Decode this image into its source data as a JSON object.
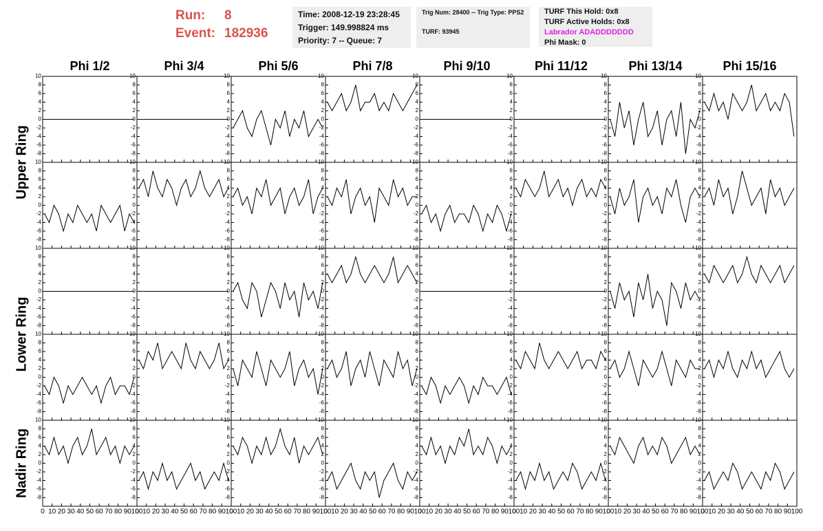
{
  "header": {
    "run_label": "Run:",
    "run": "8",
    "event_label": "Event:",
    "event": "182936",
    "time": "Time: 2008-12-19 23:28:45",
    "trigger": "Trigger: 149.998824 ms",
    "priority": "Priority: 7 -- Queue: 7",
    "trig_num": "Trig Num: 28400 -- Trig Type: PPS2",
    "turf": "TURF: 93945",
    "turf_hold": "TURF This Hold: 0x8",
    "turf_active": "TURF Active Holds: 0x8",
    "labrador": "Labrador ADADDDDDDD",
    "phi_mask": "Phi Mask: 0"
  },
  "chart_data": {
    "type": "line",
    "color": "#000000",
    "columns": [
      "Phi 1/2",
      "Phi 3/4",
      "Phi 5/6",
      "Phi 7/8",
      "Phi 9/10",
      "Phi 11/12",
      "Phi 13/14",
      "Phi 15/16"
    ],
    "rings": [
      "Upper Ring",
      "Lower Ring",
      "Nadir Ring"
    ],
    "xlim": [
      0,
      100
    ],
    "xticks": [
      0,
      10,
      20,
      30,
      40,
      50,
      60,
      70,
      80,
      90,
      100
    ],
    "ylim": [
      -10,
      10
    ],
    "yticks": [
      -8,
      -6,
      -4,
      -2,
      0,
      2,
      4,
      6,
      8,
      10
    ],
    "x": [
      2,
      7,
      12,
      17,
      22,
      27,
      32,
      37,
      42,
      47,
      52,
      57,
      62,
      67,
      72,
      77,
      82,
      87,
      92,
      97
    ],
    "panels": [
      {
        "values": [
          0,
          0,
          0,
          0,
          0,
          0,
          0,
          0,
          0,
          0,
          0,
          0,
          0,
          0,
          0,
          0,
          0,
          0,
          0,
          0
        ]
      },
      {
        "values": [
          0,
          0,
          0,
          0,
          0,
          0,
          0,
          0,
          0,
          0,
          0,
          0,
          0,
          0,
          0,
          0,
          0,
          0,
          0,
          0
        ]
      },
      {
        "values": [
          -2,
          0,
          2,
          -2,
          -4,
          0,
          2,
          -2,
          -6,
          0,
          -2,
          2,
          -4,
          0,
          -2,
          2,
          -4,
          -2,
          0,
          -2
        ]
      },
      {
        "values": [
          4,
          2,
          4,
          6,
          2,
          4,
          8,
          2,
          4,
          4,
          6,
          2,
          4,
          2,
          6,
          4,
          2,
          4,
          6,
          8
        ]
      },
      {
        "values": [
          0,
          0,
          0,
          0,
          0,
          0,
          0,
          0,
          0,
          0,
          0,
          0,
          0,
          0,
          0,
          0,
          0,
          0,
          0,
          0
        ]
      },
      {
        "values": [
          0,
          0,
          0,
          0,
          0,
          0,
          0,
          0,
          0,
          0,
          0,
          0,
          0,
          0,
          0,
          0,
          0,
          0,
          0,
          0
        ]
      },
      {
        "values": [
          0,
          -4,
          4,
          -2,
          2,
          -6,
          0,
          4,
          -4,
          -2,
          2,
          -6,
          0,
          2,
          -4,
          4,
          -8,
          0,
          -2,
          2
        ]
      },
      {
        "values": [
          4,
          2,
          6,
          2,
          4,
          0,
          6,
          4,
          2,
          4,
          8,
          2,
          4,
          6,
          2,
          4,
          2,
          6,
          4,
          -4
        ]
      },
      {
        "values": [
          -2,
          -4,
          0,
          -2,
          -6,
          -2,
          -4,
          0,
          -2,
          -4,
          -2,
          -6,
          0,
          -2,
          -4,
          -2,
          0,
          -6,
          -2,
          -4
        ]
      },
      {
        "values": [
          4,
          6,
          2,
          8,
          4,
          2,
          6,
          4,
          0,
          4,
          6,
          2,
          4,
          8,
          4,
          2,
          4,
          6,
          2,
          4
        ]
      },
      {
        "values": [
          2,
          4,
          0,
          2,
          -2,
          4,
          2,
          6,
          0,
          2,
          4,
          -2,
          2,
          4,
          0,
          2,
          6,
          -2,
          2,
          4
        ]
      },
      {
        "values": [
          2,
          0,
          4,
          2,
          6,
          -2,
          2,
          4,
          0,
          2,
          -4,
          4,
          2,
          0,
          6,
          2,
          4,
          0,
          2,
          2
        ]
      },
      {
        "values": [
          -2,
          0,
          -4,
          -2,
          -6,
          -2,
          0,
          -4,
          -2,
          -2,
          -4,
          0,
          -2,
          -6,
          -2,
          -4,
          0,
          -2,
          -6,
          -2
        ]
      },
      {
        "values": [
          4,
          2,
          6,
          4,
          2,
          4,
          8,
          2,
          4,
          6,
          2,
          4,
          0,
          4,
          6,
          2,
          4,
          2,
          6,
          4
        ]
      },
      {
        "values": [
          2,
          -2,
          4,
          0,
          2,
          6,
          -4,
          2,
          4,
          0,
          2,
          -2,
          4,
          2,
          6,
          0,
          -4,
          2,
          4,
          2
        ]
      },
      {
        "values": [
          2,
          4,
          0,
          6,
          2,
          4,
          -2,
          2,
          8,
          4,
          0,
          2,
          4,
          -2,
          6,
          2,
          4,
          0,
          2,
          4
        ]
      },
      {
        "values": [
          0,
          0,
          0,
          0,
          0,
          0,
          0,
          0,
          0,
          0,
          0,
          0,
          0,
          0,
          0,
          0,
          0,
          0,
          0,
          0
        ]
      },
      {
        "values": [
          0,
          0,
          0,
          0,
          0,
          0,
          0,
          0,
          0,
          0,
          0,
          0,
          0,
          0,
          0,
          0,
          0,
          0,
          0,
          0
        ]
      },
      {
        "values": [
          0,
          2,
          -2,
          -4,
          2,
          0,
          -6,
          -2,
          2,
          0,
          -4,
          2,
          -2,
          0,
          -6,
          2,
          -2,
          0,
          -4,
          2
        ]
      },
      {
        "values": [
          4,
          2,
          4,
          6,
          2,
          4,
          8,
          4,
          2,
          4,
          6,
          4,
          2,
          4,
          8,
          2,
          4,
          6,
          4,
          2
        ]
      },
      {
        "values": [
          0,
          0,
          0,
          0,
          0,
          0,
          0,
          0,
          0,
          0,
          0,
          0,
          0,
          0,
          0,
          0,
          0,
          0,
          0,
          0
        ]
      },
      {
        "values": [
          0,
          0,
          0,
          0,
          0,
          0,
          0,
          0,
          0,
          0,
          0,
          0,
          0,
          0,
          0,
          0,
          0,
          0,
          0,
          0
        ]
      },
      {
        "values": [
          0,
          -4,
          2,
          -2,
          0,
          -6,
          2,
          -2,
          4,
          -4,
          0,
          -2,
          -8,
          2,
          0,
          -4,
          2,
          -2,
          0,
          -2
        ]
      },
      {
        "values": [
          4,
          2,
          6,
          4,
          2,
          4,
          6,
          2,
          4,
          8,
          4,
          2,
          6,
          4,
          2,
          4,
          6,
          2,
          4,
          6
        ]
      },
      {
        "values": [
          -2,
          -4,
          0,
          -2,
          -6,
          -2,
          -4,
          -2,
          0,
          -2,
          -4,
          -2,
          -6,
          -2,
          0,
          -4,
          -2,
          -2,
          -4,
          0
        ]
      },
      {
        "values": [
          4,
          2,
          6,
          4,
          8,
          2,
          4,
          6,
          4,
          2,
          8,
          4,
          2,
          6,
          4,
          2,
          4,
          8,
          2,
          4
        ]
      },
      {
        "values": [
          2,
          -2,
          4,
          2,
          0,
          6,
          2,
          -2,
          4,
          2,
          0,
          2,
          6,
          -2,
          2,
          4,
          0,
          2,
          -4,
          2
        ]
      },
      {
        "values": [
          2,
          4,
          0,
          2,
          6,
          -2,
          2,
          4,
          0,
          6,
          2,
          -2,
          4,
          2,
          0,
          6,
          2,
          4,
          -2,
          2
        ]
      },
      {
        "values": [
          -2,
          -4,
          0,
          -2,
          -6,
          -2,
          -4,
          -2,
          0,
          -2,
          -6,
          -2,
          -4,
          0,
          -2,
          -2,
          -4,
          -2,
          0,
          -4
        ]
      },
      {
        "values": [
          4,
          2,
          6,
          4,
          2,
          8,
          4,
          2,
          4,
          6,
          4,
          2,
          4,
          6,
          2,
          4,
          4,
          2,
          6,
          4
        ]
      },
      {
        "values": [
          2,
          4,
          0,
          2,
          6,
          2,
          -2,
          4,
          2,
          0,
          2,
          6,
          2,
          -2,
          4,
          2,
          0,
          4,
          2,
          2
        ]
      },
      {
        "values": [
          2,
          4,
          0,
          4,
          2,
          6,
          2,
          0,
          4,
          2,
          6,
          2,
          4,
          0,
          2,
          4,
          6,
          2,
          0,
          2
        ]
      },
      {
        "values": [
          4,
          2,
          6,
          2,
          4,
          0,
          4,
          6,
          2,
          4,
          8,
          2,
          4,
          6,
          2,
          4,
          0,
          4,
          2,
          4
        ]
      },
      {
        "values": [
          -4,
          -2,
          -6,
          -2,
          -4,
          0,
          -4,
          -2,
          -6,
          -4,
          -2,
          0,
          -4,
          -2,
          -6,
          -4,
          -2,
          -4,
          0,
          -4
        ]
      },
      {
        "values": [
          4,
          2,
          6,
          4,
          0,
          4,
          2,
          6,
          2,
          4,
          8,
          4,
          2,
          6,
          0,
          4,
          2,
          4,
          6,
          2
        ]
      },
      {
        "values": [
          -4,
          -2,
          -6,
          -4,
          -2,
          0,
          -4,
          -6,
          -2,
          -4,
          -2,
          -8,
          -4,
          -2,
          0,
          -4,
          -6,
          -2,
          -4,
          -2
        ]
      },
      {
        "values": [
          4,
          2,
          6,
          2,
          4,
          0,
          4,
          2,
          6,
          4,
          8,
          2,
          4,
          2,
          6,
          4,
          0,
          4,
          2,
          4
        ]
      },
      {
        "values": [
          -4,
          -2,
          -6,
          -2,
          -4,
          0,
          -4,
          -2,
          -6,
          -4,
          -2,
          -4,
          0,
          -2,
          -6,
          -4,
          -2,
          -4,
          0,
          -4
        ]
      },
      {
        "values": [
          4,
          2,
          6,
          4,
          2,
          0,
          4,
          6,
          2,
          4,
          2,
          6,
          4,
          0,
          2,
          4,
          6,
          2,
          4,
          2
        ]
      },
      {
        "values": [
          -4,
          -2,
          -6,
          -4,
          -2,
          -4,
          0,
          -2,
          -6,
          -4,
          -2,
          -4,
          -6,
          -2,
          -4,
          0,
          -2,
          -6,
          -4,
          -2
        ]
      }
    ]
  }
}
